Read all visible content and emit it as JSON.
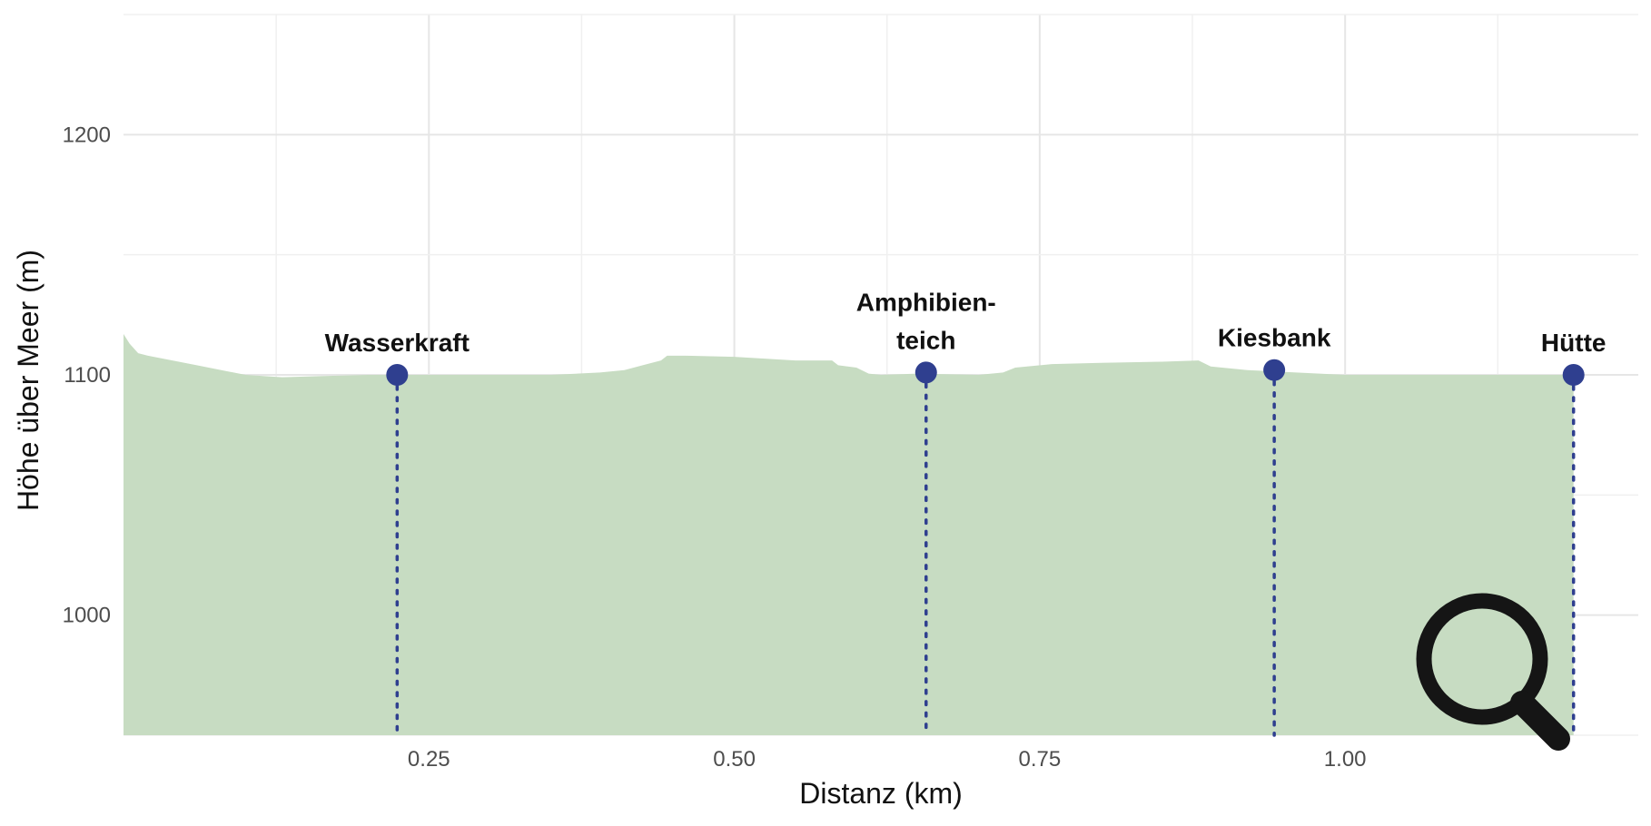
{
  "chart_data": {
    "type": "area",
    "xlabel": "Distanz (km)",
    "ylabel": "Höhe über Meer (m)",
    "xlim": [
      0.0,
      1.24
    ],
    "ylim": [
      950,
      1250
    ],
    "x_ticks": [
      0.25,
      0.5,
      0.75,
      1.0
    ],
    "x_tick_labels": [
      "0.25",
      "0.50",
      "0.75",
      "1.00"
    ],
    "y_ticks": [
      1000,
      1100,
      1200
    ],
    "y_tick_labels": [
      "1000",
      "1100",
      "1200"
    ],
    "grid": true,
    "fill_color": "#c7dcc2",
    "marker_color": "#2f3f8f",
    "profile": {
      "x": [
        0.0,
        0.005,
        0.012,
        0.02,
        0.04,
        0.06,
        0.08,
        0.1,
        0.13,
        0.16,
        0.2,
        0.25,
        0.3,
        0.35,
        0.39,
        0.41,
        0.425,
        0.44,
        0.445,
        0.46,
        0.5,
        0.55,
        0.58,
        0.585,
        0.6,
        0.61,
        0.62,
        0.65,
        0.7,
        0.72,
        0.73,
        0.76,
        0.8,
        0.85,
        0.88,
        0.89,
        0.92,
        0.96,
        1.0,
        1.05,
        1.1,
        1.15,
        1.187
      ],
      "y": [
        1117,
        1113,
        1109,
        1108,
        1106,
        1104,
        1102,
        1100,
        1099,
        1099.5,
        1100,
        1100,
        1100,
        1100,
        1101,
        1102,
        1104,
        1106,
        1108,
        1108,
        1107.5,
        1106,
        1106,
        1104,
        1103,
        1100.5,
        1100,
        1100.5,
        1100,
        1101,
        1103,
        1104.5,
        1105,
        1105.5,
        1106,
        1103.5,
        1102,
        1101,
        1100,
        1100,
        1100,
        1100,
        1100
      ]
    },
    "points": [
      {
        "label": "Wasserkraft",
        "x": 0.224,
        "y": 1100
      },
      {
        "label": "Amphibien-\nteich",
        "label_lines": [
          "Amphibien-",
          "teich"
        ],
        "x": 0.657,
        "y": 1101
      },
      {
        "label": "Kiesbank",
        "x": 0.942,
        "y": 1102
      },
      {
        "label": "Hütte",
        "x": 1.187,
        "y": 1100
      }
    ]
  },
  "zoom_icon": "magnifier-icon"
}
